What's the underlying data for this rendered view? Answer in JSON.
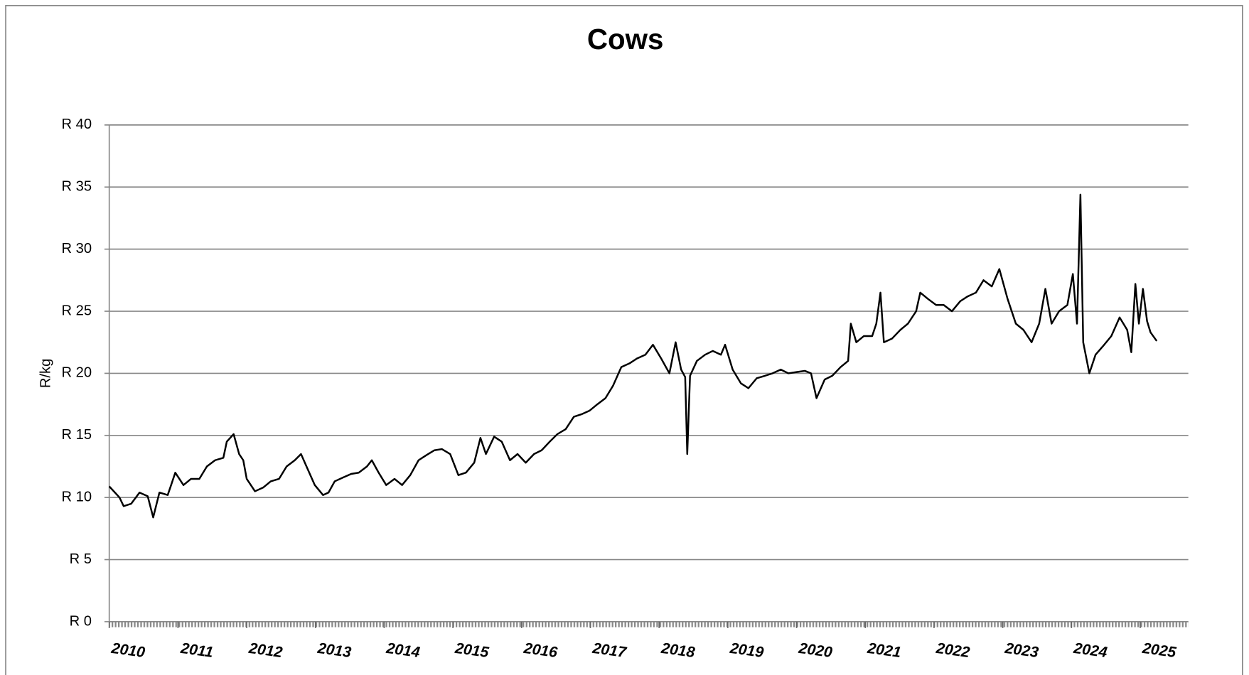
{
  "chart_data": {
    "type": "line",
    "title": "Cows",
    "y_label": "R/kg",
    "xlim": [
      2010,
      2025.7
    ],
    "xticks": [
      2010,
      2011,
      2012,
      2013,
      2014,
      2015,
      2016,
      2017,
      2018,
      2019,
      2020,
      2021,
      2022,
      2023,
      2024,
      2025
    ],
    "ylim": [
      0,
      40
    ],
    "yticks": [
      {
        "value": 0,
        "label": "R 0"
      },
      {
        "value": 5,
        "label": "R 5"
      },
      {
        "value": 10,
        "label": "R 10"
      },
      {
        "value": 15,
        "label": "R 15"
      },
      {
        "value": 20,
        "label": "R 20"
      },
      {
        "value": 25,
        "label": "R 25"
      },
      {
        "value": 30,
        "label": "R 30"
      },
      {
        "value": 35,
        "label": "R 35"
      },
      {
        "value": 40,
        "label": "R 40"
      }
    ],
    "grid": true,
    "x": [
      2010.0,
      2010.15,
      2010.21,
      2010.32,
      2010.44,
      2010.56,
      2010.64,
      2010.73,
      2010.85,
      2010.9,
      2010.96,
      2011.08,
      2011.19,
      2011.31,
      2011.42,
      2011.54,
      2011.66,
      2011.71,
      2011.81,
      2011.89,
      2011.95,
      2012.0,
      2012.12,
      2012.24,
      2012.35,
      2012.47,
      2012.58,
      2012.7,
      2012.79,
      2012.87,
      2012.99,
      2013.11,
      2013.19,
      2013.28,
      2013.4,
      2013.52,
      2013.63,
      2013.75,
      2013.82,
      2013.92,
      2014.03,
      2014.15,
      2014.26,
      2014.38,
      2014.5,
      2014.61,
      2014.73,
      2014.84,
      2014.96,
      2015.08,
      2015.19,
      2015.31,
      2015.4,
      2015.48,
      2015.6,
      2015.71,
      2015.83,
      2015.94,
      2016.06,
      2016.18,
      2016.29,
      2016.41,
      2016.52,
      2016.64,
      2016.76,
      2016.87,
      2016.99,
      2017.1,
      2017.22,
      2017.33,
      2017.45,
      2017.57,
      2017.68,
      2017.8,
      2017.91,
      2018.03,
      2018.15,
      2018.24,
      2018.32,
      2018.38,
      2018.41,
      2018.45,
      2018.55,
      2018.67,
      2018.78,
      2018.9,
      2018.96,
      2019.07,
      2019.19,
      2019.3,
      2019.42,
      2019.54,
      2019.65,
      2019.77,
      2019.88,
      2020.0,
      2020.12,
      2020.21,
      2020.29,
      2020.41,
      2020.52,
      2020.64,
      2020.75,
      2020.79,
      2020.87,
      2020.98,
      2021.1,
      2021.16,
      2021.22,
      2021.27,
      2021.39,
      2021.51,
      2021.62,
      2021.74,
      2021.8,
      2021.91,
      2022.03,
      2022.14,
      2022.26,
      2022.38,
      2022.49,
      2022.61,
      2022.72,
      2022.84,
      2022.95,
      2023.07,
      2023.19,
      2023.3,
      2023.42,
      2023.53,
      2023.62,
      2023.71,
      2023.82,
      2023.94,
      2024.02,
      2024.08,
      2024.13,
      2024.17,
      2024.26,
      2024.35,
      2024.46,
      2024.58,
      2024.7,
      2024.81,
      2024.87,
      2024.93,
      2024.98,
      2025.04,
      2025.1,
      2025.15,
      2025.24
    ],
    "series": [
      {
        "name": "Cows",
        "color": "#000000",
        "values": [
          10.9,
          10.0,
          9.3,
          9.5,
          10.4,
          10.1,
          8.4,
          10.4,
          10.2,
          11.0,
          12.0,
          11.0,
          11.5,
          11.5,
          12.5,
          13.0,
          13.2,
          14.5,
          15.1,
          13.5,
          13.0,
          11.5,
          10.5,
          10.8,
          11.3,
          11.5,
          12.5,
          13.0,
          13.5,
          12.5,
          11.0,
          10.2,
          10.4,
          11.3,
          11.6,
          11.9,
          12.0,
          12.5,
          13.0,
          12.0,
          11.0,
          11.5,
          11.0,
          11.8,
          13.0,
          13.4,
          13.8,
          13.9,
          13.5,
          11.8,
          12.0,
          12.8,
          14.8,
          13.5,
          14.9,
          14.5,
          13.0,
          13.5,
          12.8,
          13.5,
          13.8,
          14.5,
          15.1,
          15.5,
          16.5,
          16.7,
          17.0,
          17.5,
          18.0,
          19.0,
          20.5,
          20.8,
          21.2,
          21.5,
          22.3,
          21.2,
          20.0,
          22.5,
          20.3,
          19.7,
          13.5,
          19.8,
          21.0,
          21.5,
          21.8,
          21.5,
          22.3,
          20.3,
          19.2,
          18.8,
          19.6,
          19.8,
          20.0,
          20.3,
          20.0,
          20.1,
          20.2,
          20.0,
          18.0,
          19.5,
          19.8,
          20.5,
          21.0,
          24.0,
          22.5,
          23.0,
          23.0,
          24.0,
          26.5,
          22.5,
          22.8,
          23.5,
          24.0,
          25.0,
          26.5,
          26.0,
          25.5,
          25.5,
          25.0,
          25.8,
          26.2,
          26.5,
          27.5,
          27.0,
          28.4,
          26.0,
          24.0,
          23.5,
          22.5,
          24.0,
          26.8,
          24.0,
          25.0,
          25.5,
          28.0,
          24.0,
          34.4,
          22.5,
          20.0,
          21.5,
          22.2,
          23.0,
          24.5,
          23.5,
          21.7,
          27.2,
          24.0,
          26.8,
          24.2,
          23.3,
          22.6
        ]
      }
    ]
  }
}
